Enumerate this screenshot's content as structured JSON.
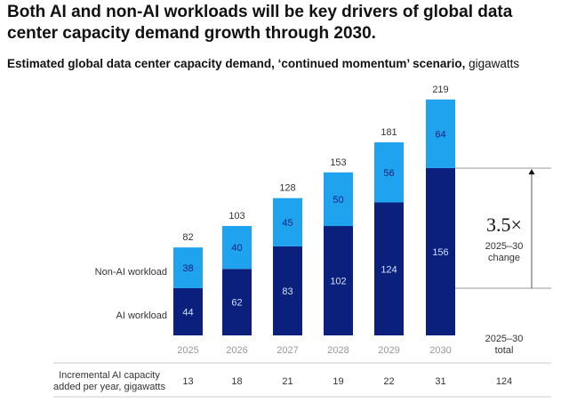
{
  "title": "Both AI and non-AI workloads will be key drivers of global data center capacity demand growth through 2030.",
  "subtitle_bold": "Estimated global data center capacity demand, ‘continued momentum’ scenario,",
  "subtitle_unit": " gigawatts",
  "chart_data": {
    "type": "bar",
    "stacked": true,
    "categories": [
      "2025",
      "2026",
      "2027",
      "2028",
      "2029",
      "2030"
    ],
    "series": [
      {
        "name": "AI workload",
        "values": [
          44,
          62,
          83,
          102,
          124,
          156
        ],
        "color": "#0b1f7c"
      },
      {
        "name": "Non-AI workload",
        "values": [
          38,
          40,
          45,
          50,
          56,
          64
        ],
        "color": "#1fa3ee"
      }
    ],
    "totals": [
      82,
      103,
      128,
      153,
      181,
      219
    ],
    "annotation": {
      "value": "3.5×",
      "label1": "2025–30",
      "label2": "change"
    },
    "incremental_row": {
      "label1": "Incremental AI capacity",
      "label2": "added per year, gigawatts",
      "values": [
        "13",
        "18",
        "21",
        "19",
        "22",
        "31"
      ],
      "total_header1": "2025–30",
      "total_header2": "total",
      "total": "124"
    }
  }
}
